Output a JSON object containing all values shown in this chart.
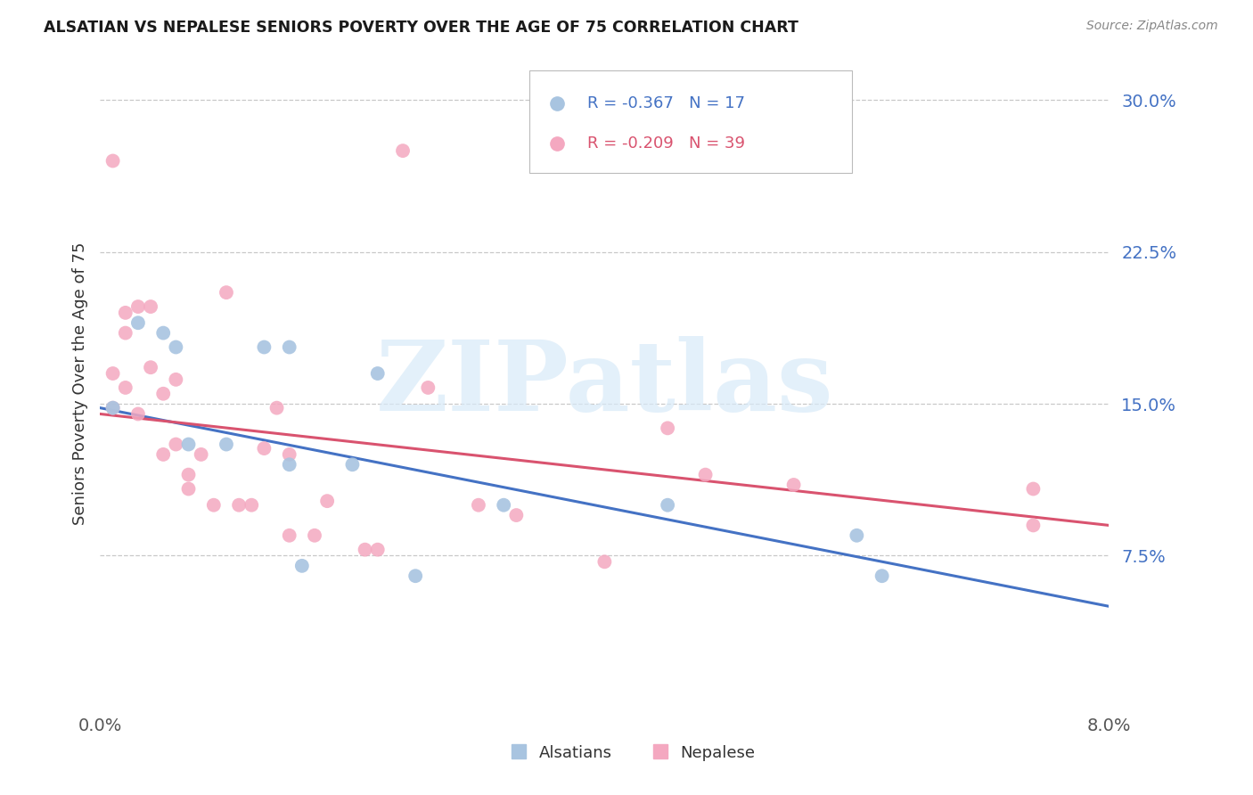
{
  "title": "ALSATIAN VS NEPALESE SENIORS POVERTY OVER THE AGE OF 75 CORRELATION CHART",
  "source": "Source: ZipAtlas.com",
  "ylabel": "Seniors Poverty Over the Age of 75",
  "xlim": [
    0.0,
    0.08
  ],
  "ylim": [
    0.0,
    0.32
  ],
  "yticks": [
    0.075,
    0.15,
    0.225,
    0.3
  ],
  "ytick_labels": [
    "7.5%",
    "15.0%",
    "22.5%",
    "30.0%"
  ],
  "background_color": "#ffffff",
  "grid_color": "#c8c8c8",
  "alsatian_color": "#a8c4e0",
  "nepalese_color": "#f4a8c0",
  "alsatian_line_color": "#4472c4",
  "nepalese_line_color": "#d9536f",
  "watermark_text": "ZIPatlas",
  "watermark_color": "#d8eaf8",
  "R_alsatian": "-0.367",
  "N_alsatian": "17",
  "R_nepalese": "-0.209",
  "N_nepalese": "39",
  "alsatian_label": "Alsatians",
  "nepalese_label": "Nepalese",
  "als_line_x0": 0.0,
  "als_line_y0": 0.148,
  "als_line_x1": 0.08,
  "als_line_y1": 0.05,
  "nep_line_x0": 0.0,
  "nep_line_y0": 0.145,
  "nep_line_x1": 0.08,
  "nep_line_y1": 0.09,
  "alsatian_x": [
    0.001,
    0.003,
    0.005,
    0.006,
    0.007,
    0.01,
    0.013,
    0.015,
    0.016,
    0.022,
    0.025,
    0.032,
    0.045,
    0.06,
    0.062,
    0.015,
    0.02
  ],
  "alsatian_y": [
    0.148,
    0.19,
    0.185,
    0.178,
    0.13,
    0.13,
    0.178,
    0.178,
    0.07,
    0.165,
    0.065,
    0.1,
    0.1,
    0.085,
    0.065,
    0.12,
    0.12
  ],
  "nepalese_x": [
    0.001,
    0.001,
    0.002,
    0.002,
    0.002,
    0.003,
    0.003,
    0.004,
    0.004,
    0.005,
    0.005,
    0.006,
    0.006,
    0.007,
    0.007,
    0.008,
    0.009,
    0.01,
    0.011,
    0.012,
    0.013,
    0.014,
    0.015,
    0.015,
    0.017,
    0.018,
    0.021,
    0.022,
    0.024,
    0.026,
    0.03,
    0.033,
    0.04,
    0.045,
    0.048,
    0.055,
    0.074,
    0.074,
    0.001
  ],
  "nepalese_y": [
    0.148,
    0.165,
    0.195,
    0.185,
    0.158,
    0.198,
    0.145,
    0.198,
    0.168,
    0.155,
    0.125,
    0.162,
    0.13,
    0.115,
    0.108,
    0.125,
    0.1,
    0.205,
    0.1,
    0.1,
    0.128,
    0.148,
    0.125,
    0.085,
    0.085,
    0.102,
    0.078,
    0.078,
    0.275,
    0.158,
    0.1,
    0.095,
    0.072,
    0.138,
    0.115,
    0.11,
    0.108,
    0.09,
    0.27
  ]
}
